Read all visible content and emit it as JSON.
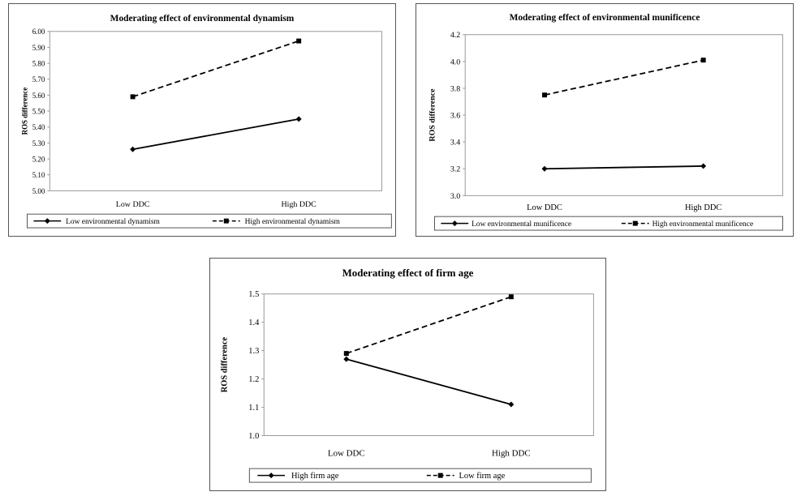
{
  "chart_data": [
    {
      "type": "line",
      "title": "Moderating effect of environmental dynamism",
      "ylabel": "ROS difference",
      "xlabel": "",
      "categories": [
        "Low DDC",
        "High DDC"
      ],
      "ylim": [
        5.0,
        6.0
      ],
      "yticks": [
        "5.00",
        "5.10",
        "5.20",
        "5.30",
        "5.40",
        "5.50",
        "5.60",
        "5.70",
        "5.80",
        "5.90",
        "6.00"
      ],
      "grid": false,
      "legend": "bottom",
      "series": [
        {
          "name": "Low environmental dynamism",
          "values": [
            5.26,
            5.45
          ],
          "style": "solid",
          "marker": "diamond"
        },
        {
          "name": "High environmental dynamism",
          "values": [
            5.59,
            5.94
          ],
          "style": "dashed",
          "marker": "square"
        }
      ]
    },
    {
      "type": "line",
      "title": "Moderating effect of environmental munificence",
      "ylabel": "ROS difference",
      "xlabel": "",
      "categories": [
        "Low DDC",
        "High DDC"
      ],
      "ylim": [
        3.0,
        4.2
      ],
      "yticks": [
        "3.0",
        "3.2",
        "3.4",
        "3.6",
        "3.8",
        "4.0",
        "4.2"
      ],
      "grid": false,
      "legend": "bottom",
      "series": [
        {
          "name": "Low environmental munificence",
          "values": [
            3.2,
            3.22
          ],
          "style": "solid",
          "marker": "diamond"
        },
        {
          "name": "High environmental munificence",
          "values": [
            3.75,
            4.01
          ],
          "style": "dashed",
          "marker": "square"
        }
      ]
    },
    {
      "type": "line",
      "title": "Moderating effect of firm age",
      "ylabel": "ROS difference",
      "xlabel": "",
      "categories": [
        "Low DDC",
        "High DDC"
      ],
      "ylim": [
        1.0,
        1.5
      ],
      "yticks": [
        "1.0",
        "1.1",
        "1.2",
        "1.3",
        "1.4",
        "1.5"
      ],
      "grid": false,
      "legend": "bottom",
      "series": [
        {
          "name": "High firm age",
          "values": [
            1.27,
            1.11
          ],
          "style": "solid",
          "marker": "diamond"
        },
        {
          "name": "Low firm age",
          "values": [
            1.29,
            1.49
          ],
          "style": "dashed",
          "marker": "square"
        }
      ]
    }
  ]
}
